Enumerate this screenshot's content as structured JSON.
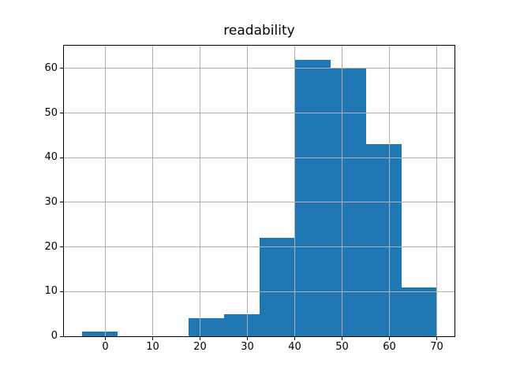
{
  "figure": {
    "background": "#ffffff"
  },
  "chart_data": {
    "type": "bar",
    "subtype": "histogram",
    "title": "readability",
    "xlabel": "",
    "ylabel": "",
    "bin_edges": [
      -5,
      2.5,
      10,
      17.5,
      25,
      32.5,
      40,
      47.5,
      55,
      62.5,
      70
    ],
    "counts": [
      1,
      0,
      0,
      4,
      5,
      22,
      62,
      60,
      43,
      11
    ],
    "x_ticks": [
      0,
      10,
      20,
      30,
      40,
      50,
      60,
      70
    ],
    "y_ticks": [
      0,
      10,
      20,
      30,
      40,
      50,
      60
    ],
    "xlim": [
      -8.75,
      73.75
    ],
    "ylim": [
      0,
      65.1
    ],
    "grid": true,
    "grid_over_bars": true,
    "legend": "none",
    "bar_color": "#1f77b4",
    "grid_color": "#b0b0b0",
    "axes_edge_color": "#000000",
    "text_color": "#000000"
  }
}
